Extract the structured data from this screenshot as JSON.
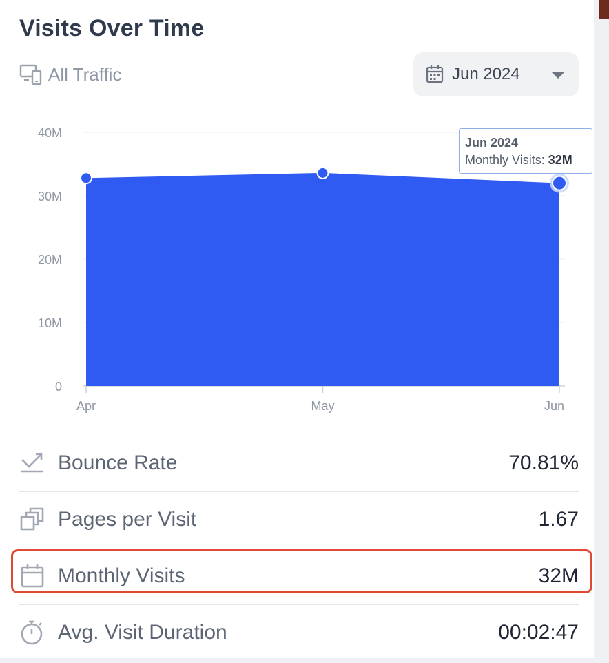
{
  "widget": {
    "title": "Visits Over Time",
    "traffic_label": "All Traffic",
    "month_select": "Jun 2024"
  },
  "chart_data": {
    "type": "area",
    "x": [
      "Apr",
      "May",
      "Jun"
    ],
    "series": [
      {
        "name": "Monthly Visits",
        "values": [
          32.8,
          33.6,
          32.0
        ],
        "color": "#2f5bf3"
      }
    ],
    "yunit": "M",
    "y_ticks": [
      "0",
      "10M",
      "20M",
      "30M",
      "40M"
    ],
    "ylim": [
      0,
      40
    ],
    "grid": true,
    "tooltip": {
      "title": "Jun 2024",
      "label": "Monthly Visits:",
      "value": "32M"
    }
  },
  "metrics": [
    {
      "label": "Bounce Rate",
      "value": "70.81%",
      "icon": "trend-icon"
    },
    {
      "label": "Pages per Visit",
      "value": "1.67",
      "icon": "pages-icon"
    },
    {
      "label": "Monthly Visits",
      "value": "32M",
      "icon": "calendar-icon"
    },
    {
      "label": "Avg. Visit Duration",
      "value": "00:02:47",
      "icon": "stopwatch-icon"
    }
  ],
  "colors": {
    "accent": "#2f5bf3",
    "highlight": "#e04a34"
  }
}
